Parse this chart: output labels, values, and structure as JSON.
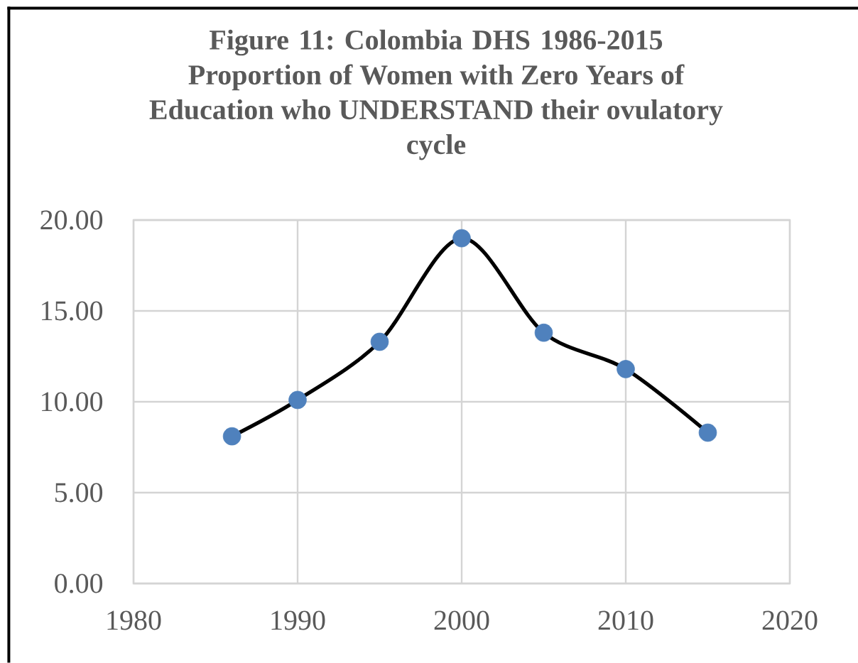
{
  "chart_data": {
    "type": "line",
    "title": "Figure 11: Colombia DHS 1986-2015",
    "subtitle": "Proportion of Women with Zero Years of Education who UNDERSTAND their ovulatory cycle",
    "x": [
      1986,
      1990,
      1995,
      2000,
      2005,
      2010,
      2015
    ],
    "series": [
      {
        "color": "#000000",
        "colors": [
          "#4f81bd",
          "#4f81bd",
          "#4f81bd",
          "#4f81bd",
          "#4f81bd",
          "#4f81bd",
          "#4f81bd"
        ],
        "values": [
          8.1,
          10.1,
          13.3,
          19.0,
          13.8,
          11.8,
          8.3
        ]
      }
    ],
    "xlim": [
      1980,
      2020
    ],
    "xticks": [
      1980,
      1990,
      2000,
      2010,
      2020
    ],
    "ylim": [
      0,
      20
    ],
    "yticks": [
      {
        "value": 0,
        "label": "0.00"
      },
      {
        "value": 5,
        "label": "5.00"
      },
      {
        "value": 10,
        "label": "10.00"
      },
      {
        "value": 15,
        "label": "15.00"
      },
      {
        "value": 20,
        "label": "20.00"
      }
    ],
    "grid": true,
    "marker": "circle",
    "line_style": "solid"
  }
}
